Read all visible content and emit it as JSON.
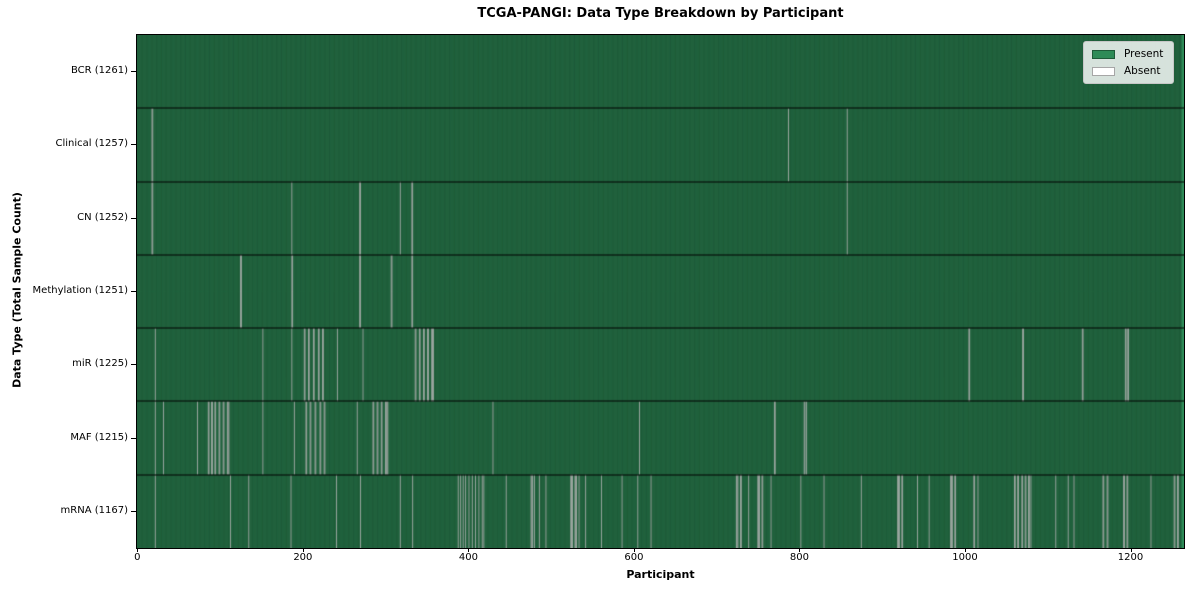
{
  "title": "TCGA-PANGI: Data Type Breakdown by Participant",
  "x_axis": {
    "label": "Participant",
    "ticks": [
      0,
      200,
      400,
      600,
      800,
      1000,
      1200
    ]
  },
  "y_axis": {
    "label": "Data Type (Total Sample Count)"
  },
  "legend": {
    "items": [
      {
        "label": "Present",
        "color": "#2e8b57"
      },
      {
        "label": "Absent",
        "color": "#ffffff"
      }
    ]
  },
  "chart_data": {
    "type": "heatmap",
    "title": "TCGA-PANGI: Data Type Breakdown by Participant",
    "xlabel": "Participant",
    "ylabel": "Data Type (Total Sample Count)",
    "n_participants": 1261,
    "xlim": [
      -1,
      1264
    ],
    "x_ticks": [
      0,
      200,
      400,
      600,
      800,
      1000,
      1200
    ],
    "present_color": "#2e8b57",
    "absent_color": "#ffffff",
    "bar_edge_color": "rgba(0,0,0,0.55)",
    "row_separator_color": "#000000",
    "legend_position": "upper right",
    "rows": [
      {
        "name": "BCR",
        "label": "BCR (1261)",
        "total": 1261,
        "absent_indices": []
      },
      {
        "name": "Clinical",
        "label": "Clinical (1257)",
        "total": 1257,
        "absent_indices": [
          17,
          18,
          786,
          857
        ]
      },
      {
        "name": "CN",
        "label": "CN (1252)",
        "total": 1252,
        "absent_indices": [
          17,
          18,
          186,
          268,
          269,
          317,
          331,
          332,
          857
        ]
      },
      {
        "name": "Methylation",
        "label": "Methylation (1251)",
        "total": 1251,
        "absent_indices": [
          124,
          125,
          186,
          187,
          268,
          269,
          306,
          307,
          331,
          332
        ]
      },
      {
        "name": "miR",
        "label": "miR (1225)",
        "total": 1225,
        "absent_indices": [
          21,
          151,
          186,
          201,
          202,
          206,
          207,
          212,
          213,
          218,
          219,
          223,
          224,
          241,
          272,
          335,
          336,
          340,
          341,
          345,
          346,
          350,
          351,
          355,
          356,
          357,
          1004,
          1005,
          1069,
          1070,
          1141,
          1142,
          1193,
          1194,
          1196,
          1197
        ]
      },
      {
        "name": "MAF",
        "label": "MAF (1215)",
        "total": 1215,
        "absent_indices": [
          21,
          31,
          72,
          85,
          86,
          89,
          90,
          93,
          94,
          98,
          99,
          103,
          104,
          108,
          109,
          110,
          151,
          189,
          203,
          204,
          208,
          209,
          214,
          215,
          220,
          221,
          225,
          226,
          265,
          284,
          285,
          289,
          290,
          294,
          295,
          299,
          300,
          301,
          302,
          429,
          606,
          769,
          770,
          805,
          806,
          808
        ]
      },
      {
        "name": "mRNA",
        "label": "mRNA (1167)",
        "total": 1167,
        "absent_indices": [
          21,
          112,
          134,
          185,
          240,
          269,
          317,
          332,
          387,
          390,
          393,
          396,
          400,
          404,
          408,
          412,
          416,
          418,
          445,
          475,
          476,
          477,
          479,
          485,
          493,
          523,
          524,
          525,
          528,
          529,
          530,
          533,
          541,
          560,
          585,
          604,
          620,
          723,
          724,
          725,
          728,
          729,
          738,
          749,
          750,
          751,
          754,
          755,
          765,
          801,
          829,
          874,
          918,
          919,
          920,
          923,
          924,
          942,
          956,
          982,
          983,
          984,
          987,
          988,
          1010,
          1011,
          1015,
          1059,
          1060,
          1063,
          1064,
          1068,
          1069,
          1072,
          1073,
          1076,
          1077,
          1079,
          1109,
          1124,
          1131,
          1166,
          1167,
          1171,
          1172,
          1191,
          1192,
          1195,
          1196,
          1224,
          1252,
          1253,
          1256,
          1257
        ]
      }
    ]
  }
}
